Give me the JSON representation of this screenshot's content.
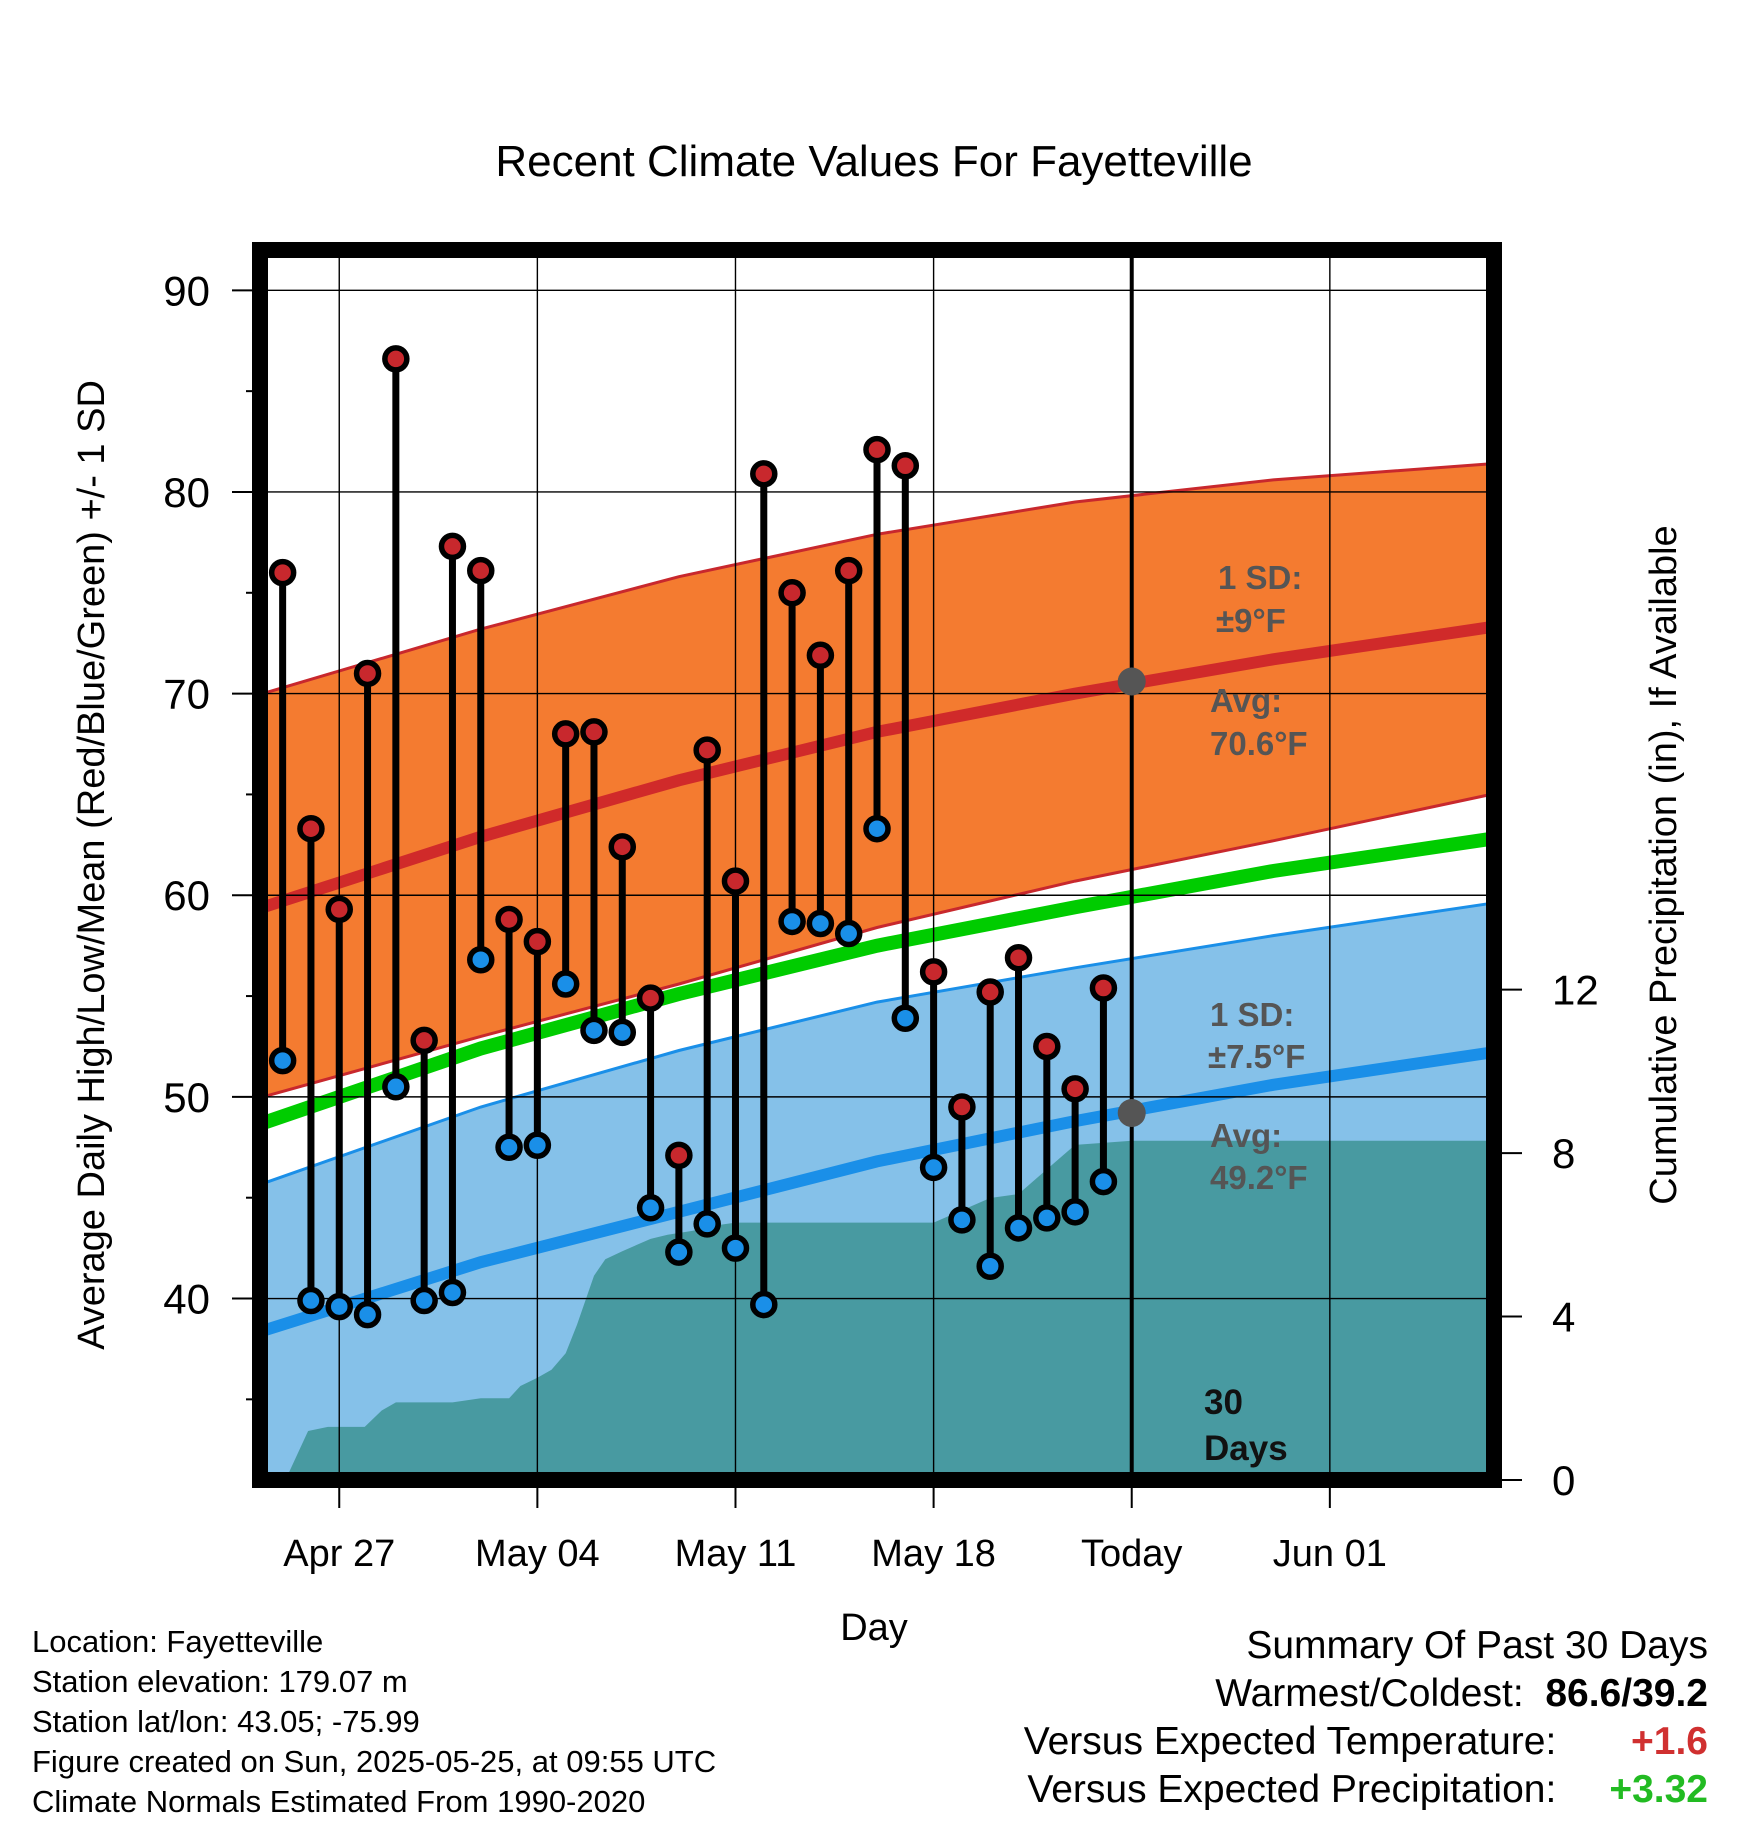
{
  "chart_data": {
    "type": "line",
    "title": "Recent Climate Values For Fayetteville",
    "xlabel": "Day",
    "ylabel": "Average Daily High/Low/Mean (Red/Blue/Green) +/- 1 SD",
    "y2label": "Cumulative Precipitation (in), If Available",
    "ylim": [
      31,
      92
    ],
    "y2lim": [
      0,
      30.1
    ],
    "xlim": [
      -2.8,
      40.8
    ],
    "x_axis_note": "x values are day offsets from Apr 27 (Today = May 25 = 28)",
    "x_ticks": [
      {
        "x": 0,
        "label": "Apr 27"
      },
      {
        "x": 7,
        "label": "May 04"
      },
      {
        "x": 14,
        "label": "May 11"
      },
      {
        "x": 21,
        "label": "May 18"
      },
      {
        "x": 28,
        "label": "Today"
      },
      {
        "x": 35,
        "label": "Jun 01"
      }
    ],
    "y_ticks": [
      40,
      50,
      60,
      70,
      80,
      90
    ],
    "y2_ticks": [
      0,
      4,
      8,
      12
    ],
    "today_x": 28,
    "days": [
      -2,
      -1,
      0,
      1,
      2,
      3,
      4,
      5,
      6,
      7,
      8,
      9,
      10,
      11,
      12,
      13,
      14,
      15,
      16,
      17,
      18,
      19,
      20,
      21,
      22,
      23,
      24,
      25,
      26,
      27
    ],
    "series": [
      {
        "name": "Daily High",
        "color": "#c8282d",
        "values": [
          76.0,
          63.3,
          59.3,
          71.0,
          86.6,
          52.8,
          77.3,
          76.1,
          58.8,
          57.7,
          68.0,
          68.1,
          62.4,
          54.9,
          47.1,
          67.2,
          60.7,
          80.9,
          75.0,
          71.9,
          76.1,
          82.1,
          81.3,
          56.2,
          49.5,
          55.2,
          56.9,
          52.5,
          50.4,
          55.4
        ]
      },
      {
        "name": "Daily Low",
        "color": "#1a8fe8",
        "values": [
          51.8,
          39.9,
          39.6,
          39.2,
          50.5,
          39.9,
          40.3,
          56.8,
          47.5,
          47.6,
          55.6,
          53.3,
          53.2,
          44.5,
          42.3,
          43.7,
          42.5,
          39.7,
          58.7,
          58.6,
          58.1,
          63.3,
          53.9,
          46.5,
          43.9,
          41.6,
          43.5,
          44.0,
          44.3,
          45.8
        ]
      }
    ],
    "normals": {
      "x": [
        -2.7,
        5,
        12,
        19,
        26,
        33,
        40.7
      ],
      "avg_high": [
        59.4,
        62.9,
        65.7,
        68.1,
        70.0,
        71.7,
        73.3
      ],
      "high_sd_upper": [
        70.0,
        73.2,
        75.8,
        77.9,
        79.5,
        80.6,
        81.4
      ],
      "high_sd_lower": [
        50.0,
        53.0,
        55.6,
        58.4,
        60.7,
        62.7,
        65.0
      ],
      "avg_mean": [
        48.7,
        52.4,
        55.1,
        57.5,
        59.4,
        61.2,
        62.8
      ],
      "avg_low": [
        38.4,
        41.8,
        44.3,
        46.8,
        48.8,
        50.6,
        52.2
      ],
      "low_sd_upper": [
        45.7,
        49.5,
        52.3,
        54.7,
        56.4,
        58.0,
        59.6
      ],
      "low_sd_lower": [
        31,
        31,
        31,
        31,
        31,
        31,
        31
      ]
    },
    "precip_cumulative": {
      "x": [
        -2.7,
        -1.8,
        -1.1,
        -0.4,
        0.1,
        0.9,
        1.5,
        2.0,
        3.0,
        4.0,
        5.0,
        6.0,
        6.4,
        7.0,
        7.5,
        8.0,
        8.4,
        9.0,
        9.4,
        10.0,
        11.0,
        11.6,
        12.5,
        13.0,
        14.0,
        21.0,
        23.0,
        24.0,
        25.0,
        26.0,
        28.0,
        40.7
      ],
      "values": [
        0,
        0.15,
        1.2,
        1.3,
        1.3,
        1.3,
        1.7,
        1.9,
        1.9,
        1.9,
        2.0,
        2.0,
        2.3,
        2.5,
        2.7,
        3.1,
        3.8,
        5.0,
        5.4,
        5.6,
        5.9,
        6.0,
        6.1,
        6.2,
        6.3,
        6.3,
        6.9,
        7.0,
        7.6,
        8.2,
        8.3,
        8.3
      ]
    },
    "annotations": {
      "high_sd_line1": "1 SD:",
      "high_sd_line2": "±9°F",
      "high_avg_line1": "Avg:",
      "high_avg_line2": "70.6°F",
      "high_avg_value": 70.6,
      "low_sd_line1": "1 SD:",
      "low_sd_line2": "±7.5°F",
      "low_avg_line1": "Avg:",
      "low_avg_line2": "49.2°F",
      "low_avg_value": 49.2,
      "days_line1": "30",
      "days_line2": "Days"
    },
    "colors": {
      "high_band": "#f47b30",
      "high_band_edge": "#c8282d",
      "high_avg": "#d02a2a",
      "mean": "#00cc00",
      "low_band": "#85c1e9",
      "low_band_edge": "#1a8fe8",
      "low_avg": "#1a8fe8",
      "precip": "#489aa1",
      "annotation": "#555555",
      "high_dot": "#c8282d",
      "low_dot": "#1a8fe8"
    },
    "grid": true
  },
  "info": {
    "location": "Location: Fayetteville",
    "elevation": "Station elevation: 179.07 m",
    "latlon": "Station lat/lon: 43.05; -75.99",
    "created": "Figure created on Sun, 2025-05-25, at 09:55 UTC",
    "normals": "Climate Normals Estimated From 1990-2020"
  },
  "summary": {
    "title": "Summary Of Past 30 Days",
    "warm_cold_label": "Warmest/Coldest:",
    "warm_cold_value": "86.6/39.2",
    "temp_label": "Versus Expected Temperature:",
    "temp_value": "+1.6",
    "temp_color": "#d03030",
    "precip_label": "Versus Expected Precipitation:",
    "precip_value": "+3.32",
    "precip_color": "#22bb22"
  }
}
